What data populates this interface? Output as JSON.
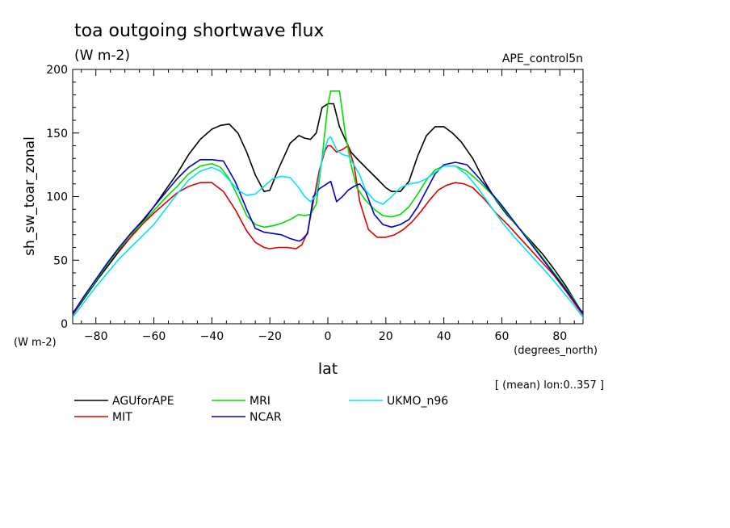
{
  "chart_data": {
    "type": "line",
    "title": "toa outgoing shortwave flux",
    "units": "(W m-2)",
    "experiment": "APE_control5n",
    "ylabel": "sh_sw_toar_zonal",
    "y_units_corner": "(W m-2)",
    "xlabel": "lat",
    "x_units": "(degrees_north)",
    "averaging_note": "[ (mean) lon:0..357 ]",
    "xlim": [
      -88,
      88
    ],
    "ylim": [
      0,
      200
    ],
    "x_ticks": [
      -80,
      -60,
      -40,
      -20,
      0,
      20,
      40,
      60,
      80
    ],
    "y_ticks": [
      0,
      50,
      100,
      150,
      200
    ],
    "grid": false,
    "legend_position": "bottom",
    "series": [
      {
        "name": "AGUforAPE",
        "color": "#000000",
        "x": [
          -88,
          -84,
          -80,
          -76,
          -72,
          -68,
          -64,
          -60,
          -56,
          -52,
          -48,
          -44,
          -40,
          -37,
          -34,
          -31,
          -28,
          -25,
          -22,
          -20,
          -17,
          -13,
          -10,
          -8,
          -6,
          -4,
          -2,
          0,
          2,
          4,
          6,
          8,
          10,
          13,
          17,
          20,
          22,
          25,
          28,
          31,
          34,
          37,
          40,
          43,
          46,
          50,
          54,
          58,
          62,
          66,
          70,
          74,
          78,
          82,
          86,
          88
        ],
        "y": [
          7,
          20,
          33,
          45,
          57,
          68,
          80,
          92,
          105,
          118,
          133,
          145,
          153,
          156,
          157,
          150,
          135,
          117,
          104,
          105,
          122,
          142,
          148,
          146,
          145,
          150,
          170,
          173,
          173,
          155,
          145,
          135,
          130,
          123,
          114,
          107,
          104,
          104,
          112,
          132,
          148,
          155,
          155,
          150,
          143,
          130,
          112,
          97,
          85,
          75,
          65,
          55,
          43,
          30,
          15,
          7
        ]
      },
      {
        "name": "MIT",
        "color": "#e00000",
        "x": [
          -88,
          -84,
          -80,
          -76,
          -72,
          -68,
          -64,
          -60,
          -56,
          -52,
          -48,
          -44,
          -40,
          -36,
          -32,
          -28,
          -25,
          -22,
          -20,
          -17,
          -14,
          -11,
          -9,
          -7,
          -5,
          -3,
          -1,
          0,
          1,
          3,
          5,
          7,
          9,
          11,
          14,
          17,
          20,
          23,
          26,
          29,
          32,
          35,
          38,
          41,
          44,
          47,
          50,
          54,
          58,
          62,
          66,
          70,
          74,
          78,
          82,
          86,
          88
        ],
        "y": [
          7,
          21,
          34,
          47,
          58,
          68,
          78,
          87,
          95,
          103,
          108,
          111,
          111,
          104,
          90,
          73,
          64,
          60,
          59,
          60,
          60,
          59,
          62,
          72,
          96,
          120,
          136,
          140,
          140,
          135,
          137,
          140,
          125,
          96,
          74,
          68,
          68,
          70,
          74,
          80,
          88,
          97,
          105,
          109,
          111,
          110,
          107,
          98,
          87,
          78,
          68,
          58,
          48,
          38,
          26,
          13,
          7
        ]
      },
      {
        "name": "MRI",
        "color": "#00dd00",
        "x": [
          -88,
          -84,
          -80,
          -76,
          -72,
          -68,
          -64,
          -60,
          -56,
          -52,
          -48,
          -44,
          -40,
          -37,
          -34,
          -31,
          -28,
          -25,
          -22,
          -19,
          -16,
          -13,
          -10,
          -8,
          -6,
          -4,
          -2,
          0,
          1,
          4,
          6,
          8,
          10,
          13,
          16,
          19,
          22,
          25,
          28,
          31,
          34,
          37,
          40,
          44,
          48,
          52,
          56,
          60,
          64,
          68,
          72,
          76,
          80,
          84,
          88
        ],
        "y": [
          8,
          21,
          34,
          47,
          59,
          70,
          79,
          89,
          99,
          108,
          118,
          124,
          126,
          123,
          114,
          100,
          85,
          78,
          76,
          77,
          79,
          82,
          86,
          85,
          86,
          94,
          130,
          172,
          183,
          183,
          150,
          125,
          107,
          97,
          90,
          85,
          84,
          86,
          92,
          102,
          113,
          121,
          124,
          124,
          120,
          112,
          103,
          92,
          80,
          70,
          58,
          46,
          34,
          22,
          8
        ]
      },
      {
        "name": "NCAR",
        "color": "#0000cc",
        "x": [
          -88,
          -84,
          -80,
          -76,
          -72,
          -68,
          -64,
          -60,
          -56,
          -52,
          -48,
          -44,
          -40,
          -36,
          -32,
          -28,
          -25,
          -22,
          -19,
          -16,
          -13,
          -10,
          -9,
          -7,
          -5,
          -3,
          -1,
          1,
          2,
          3,
          5,
          7,
          9,
          11,
          13,
          16,
          19,
          22,
          25,
          28,
          31,
          34,
          37,
          40,
          44,
          48,
          52,
          56,
          60,
          64,
          68,
          72,
          76,
          80,
          84,
          88
        ],
        "y": [
          8,
          22,
          35,
          48,
          60,
          71,
          81,
          92,
          103,
          114,
          123,
          129,
          129,
          128,
          112,
          90,
          75,
          72,
          71,
          70,
          67,
          65,
          66,
          71,
          100,
          106,
          109,
          112,
          104,
          96,
          100,
          105,
          108,
          110,
          104,
          86,
          78,
          76,
          78,
          82,
          92,
          105,
          118,
          125,
          127,
          125,
          115,
          104,
          93,
          81,
          69,
          57,
          45,
          33,
          21,
          8
        ]
      },
      {
        "name": "UKMO_n96",
        "color": "#00e5ee",
        "x": [
          -88,
          -84,
          -80,
          -76,
          -72,
          -68,
          -64,
          -60,
          -56,
          -52,
          -48,
          -44,
          -40,
          -37,
          -34,
          -31,
          -28,
          -25,
          -22,
          -19,
          -16,
          -13,
          -10,
          -8,
          -6,
          -4,
          -2,
          0,
          1,
          3,
          5,
          7,
          9,
          11,
          13,
          16,
          19,
          22,
          25,
          28,
          31,
          34,
          37,
          40,
          44,
          48,
          52,
          56,
          60,
          64,
          68,
          72,
          76,
          80,
          84,
          88,
          89
        ],
        "y": [
          5,
          17,
          29,
          40,
          51,
          60,
          69,
          78,
          90,
          102,
          113,
          120,
          123,
          120,
          113,
          105,
          101,
          102,
          108,
          114,
          116,
          115,
          107,
          100,
          96,
          101,
          130,
          145,
          147,
          137,
          133,
          132,
          125,
          117,
          105,
          97,
          94,
          100,
          107,
          110,
          111,
          114,
          119,
          124,
          124,
          117,
          106,
          93,
          80,
          69,
          59,
          49,
          39,
          28,
          17,
          5,
          0
        ]
      }
    ]
  }
}
